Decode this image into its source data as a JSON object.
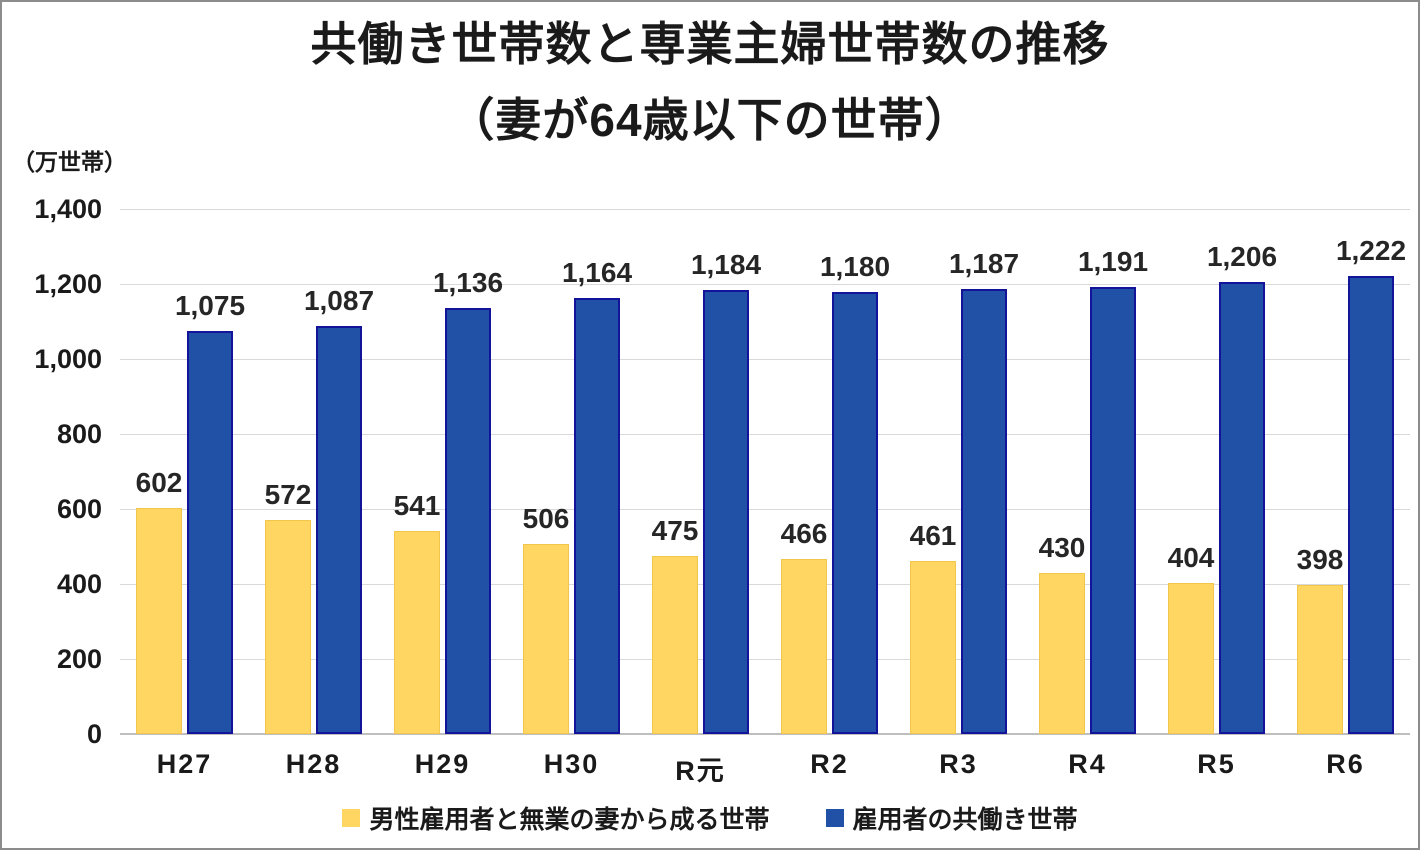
{
  "title": {
    "line1": "共働き世帯数と専業主婦世帯数の推移",
    "line2": "（妻が64歳以下の世帯）"
  },
  "unit_label": "（万世帯）",
  "chart_data": {
    "type": "bar",
    "title": "共働き世帯数と専業主婦世帯数の推移（妻が64歳以下の世帯）",
    "ylabel": "万世帯",
    "xlabel": "",
    "categories": [
      "H27",
      "H28",
      "H29",
      "H30",
      "R元",
      "R2",
      "R3",
      "R4",
      "R5",
      "R6"
    ],
    "series": [
      {
        "name": "男性雇用者と無業の妻から成る世帯",
        "color": "#FFD662",
        "border_color": "#F2C64D",
        "values": [
          602,
          572,
          541,
          506,
          475,
          466,
          461,
          430,
          404,
          398
        ]
      },
      {
        "name": "雇用者の共働き世帯",
        "color": "#2051A6",
        "border_color": "#14149B",
        "values": [
          1075,
          1087,
          1136,
          1164,
          1184,
          1180,
          1187,
          1191,
          1206,
          1222
        ]
      }
    ],
    "ylim": [
      0,
      1400
    ],
    "ytick_interval": 200,
    "yticks": [
      "0",
      "200",
      "400",
      "600",
      "800",
      "1,000",
      "1,200",
      "1,400"
    ],
    "grid": true,
    "gridline_color": "#d9d9d9",
    "baseline_color": "#bfbfbf",
    "legend_position": "bottom",
    "data_labels": true
  }
}
